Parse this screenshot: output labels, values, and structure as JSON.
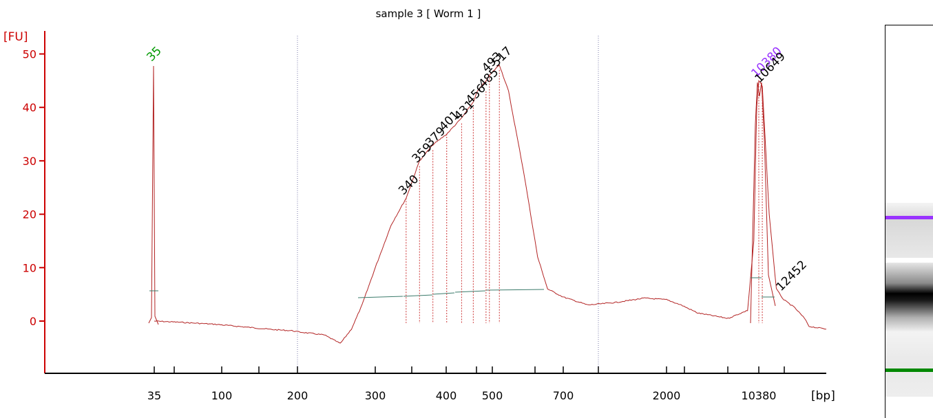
{
  "chart_data": {
    "type": "line",
    "title": "sample 3  [ Worm 1 ]",
    "ylabel": "[FU]",
    "xlabel": "[bp]",
    "ylim": [
      -9,
      53
    ],
    "yticks": [
      0,
      10,
      20,
      30,
      40,
      50
    ],
    "xtick_labels": [
      "35",
      "100",
      "200",
      "300",
      "400",
      "500",
      "700",
      "2000",
      "10380"
    ],
    "grid": "vertical dotted lines at 200 and between 700 and 2000",
    "series": [
      {
        "color": "#b22222",
        "points": [
          [
            35,
            0
          ],
          [
            50,
            -0.2
          ],
          [
            90,
            -0.6
          ],
          [
            130,
            -1.2
          ],
          [
            160,
            -1.6
          ],
          [
            190,
            -1.8
          ],
          [
            200,
            -2.0
          ],
          [
            230,
            -2.6
          ],
          [
            250,
            -4.2
          ],
          [
            265,
            -1.5
          ],
          [
            280,
            3
          ],
          [
            300,
            10
          ],
          [
            320,
            18
          ],
          [
            340,
            23
          ],
          [
            359,
            30
          ],
          [
            379,
            33
          ],
          [
            401,
            35
          ],
          [
            431,
            38
          ],
          [
            456,
            41
          ],
          [
            465,
            43
          ],
          [
            485,
            45
          ],
          [
            493,
            46
          ],
          [
            505,
            47
          ],
          [
            517,
            48
          ],
          [
            540,
            43
          ],
          [
            580,
            28
          ],
          [
            620,
            12
          ],
          [
            650,
            6
          ],
          [
            700,
            4.5
          ],
          [
            900,
            3
          ],
          [
            1200,
            3.5
          ],
          [
            1600,
            4.3
          ],
          [
            2000,
            4
          ],
          [
            2600,
            3
          ],
          [
            3500,
            1.5
          ],
          [
            6000,
            0.5
          ],
          [
            8500,
            2
          ],
          [
            9500,
            15
          ],
          [
            10000,
            40
          ],
          [
            10380,
            45
          ],
          [
            10649,
            44
          ],
          [
            11200,
            20
          ],
          [
            11800,
            6
          ],
          [
            12452,
            4
          ],
          [
            13500,
            2.5
          ],
          [
            14500,
            0.5
          ],
          [
            15000,
            -1
          ],
          [
            17000,
            -1.5
          ]
        ]
      }
    ],
    "peaks": [
      {
        "label": "35",
        "x": 35,
        "y": 48,
        "color": "#009900"
      },
      {
        "label": "340",
        "x": 340,
        "y": 23,
        "color": "#000000"
      },
      {
        "label": "359",
        "x": 359,
        "y": 29,
        "color": "#000000"
      },
      {
        "label": "379",
        "x": 379,
        "y": 32,
        "color": "#000000"
      },
      {
        "label": "401",
        "x": 401,
        "y": 35,
        "color": "#000000"
      },
      {
        "label": "431",
        "x": 431,
        "y": 37,
        "color": "#000000"
      },
      {
        "label": "456",
        "x": 456,
        "y": 40,
        "color": "#000000"
      },
      {
        "label": "485",
        "x": 485,
        "y": 43,
        "color": "#000000"
      },
      {
        "label": "493",
        "x": 493,
        "y": 46,
        "color": "#000000"
      },
      {
        "label": "517",
        "x": 517,
        "y": 47,
        "color": "#000000"
      },
      {
        "label": "10380",
        "x": 10380,
        "y": 45,
        "color": "#9933ff"
      },
      {
        "label": "10649",
        "x": 10649,
        "y": 44,
        "color": "#000000"
      },
      {
        "label": "12452",
        "x": 12452,
        "y": 5,
        "color": "#000000"
      }
    ]
  },
  "gel_colors": {
    "upper_marker": "#9933ff",
    "lower_marker": "#008800"
  }
}
